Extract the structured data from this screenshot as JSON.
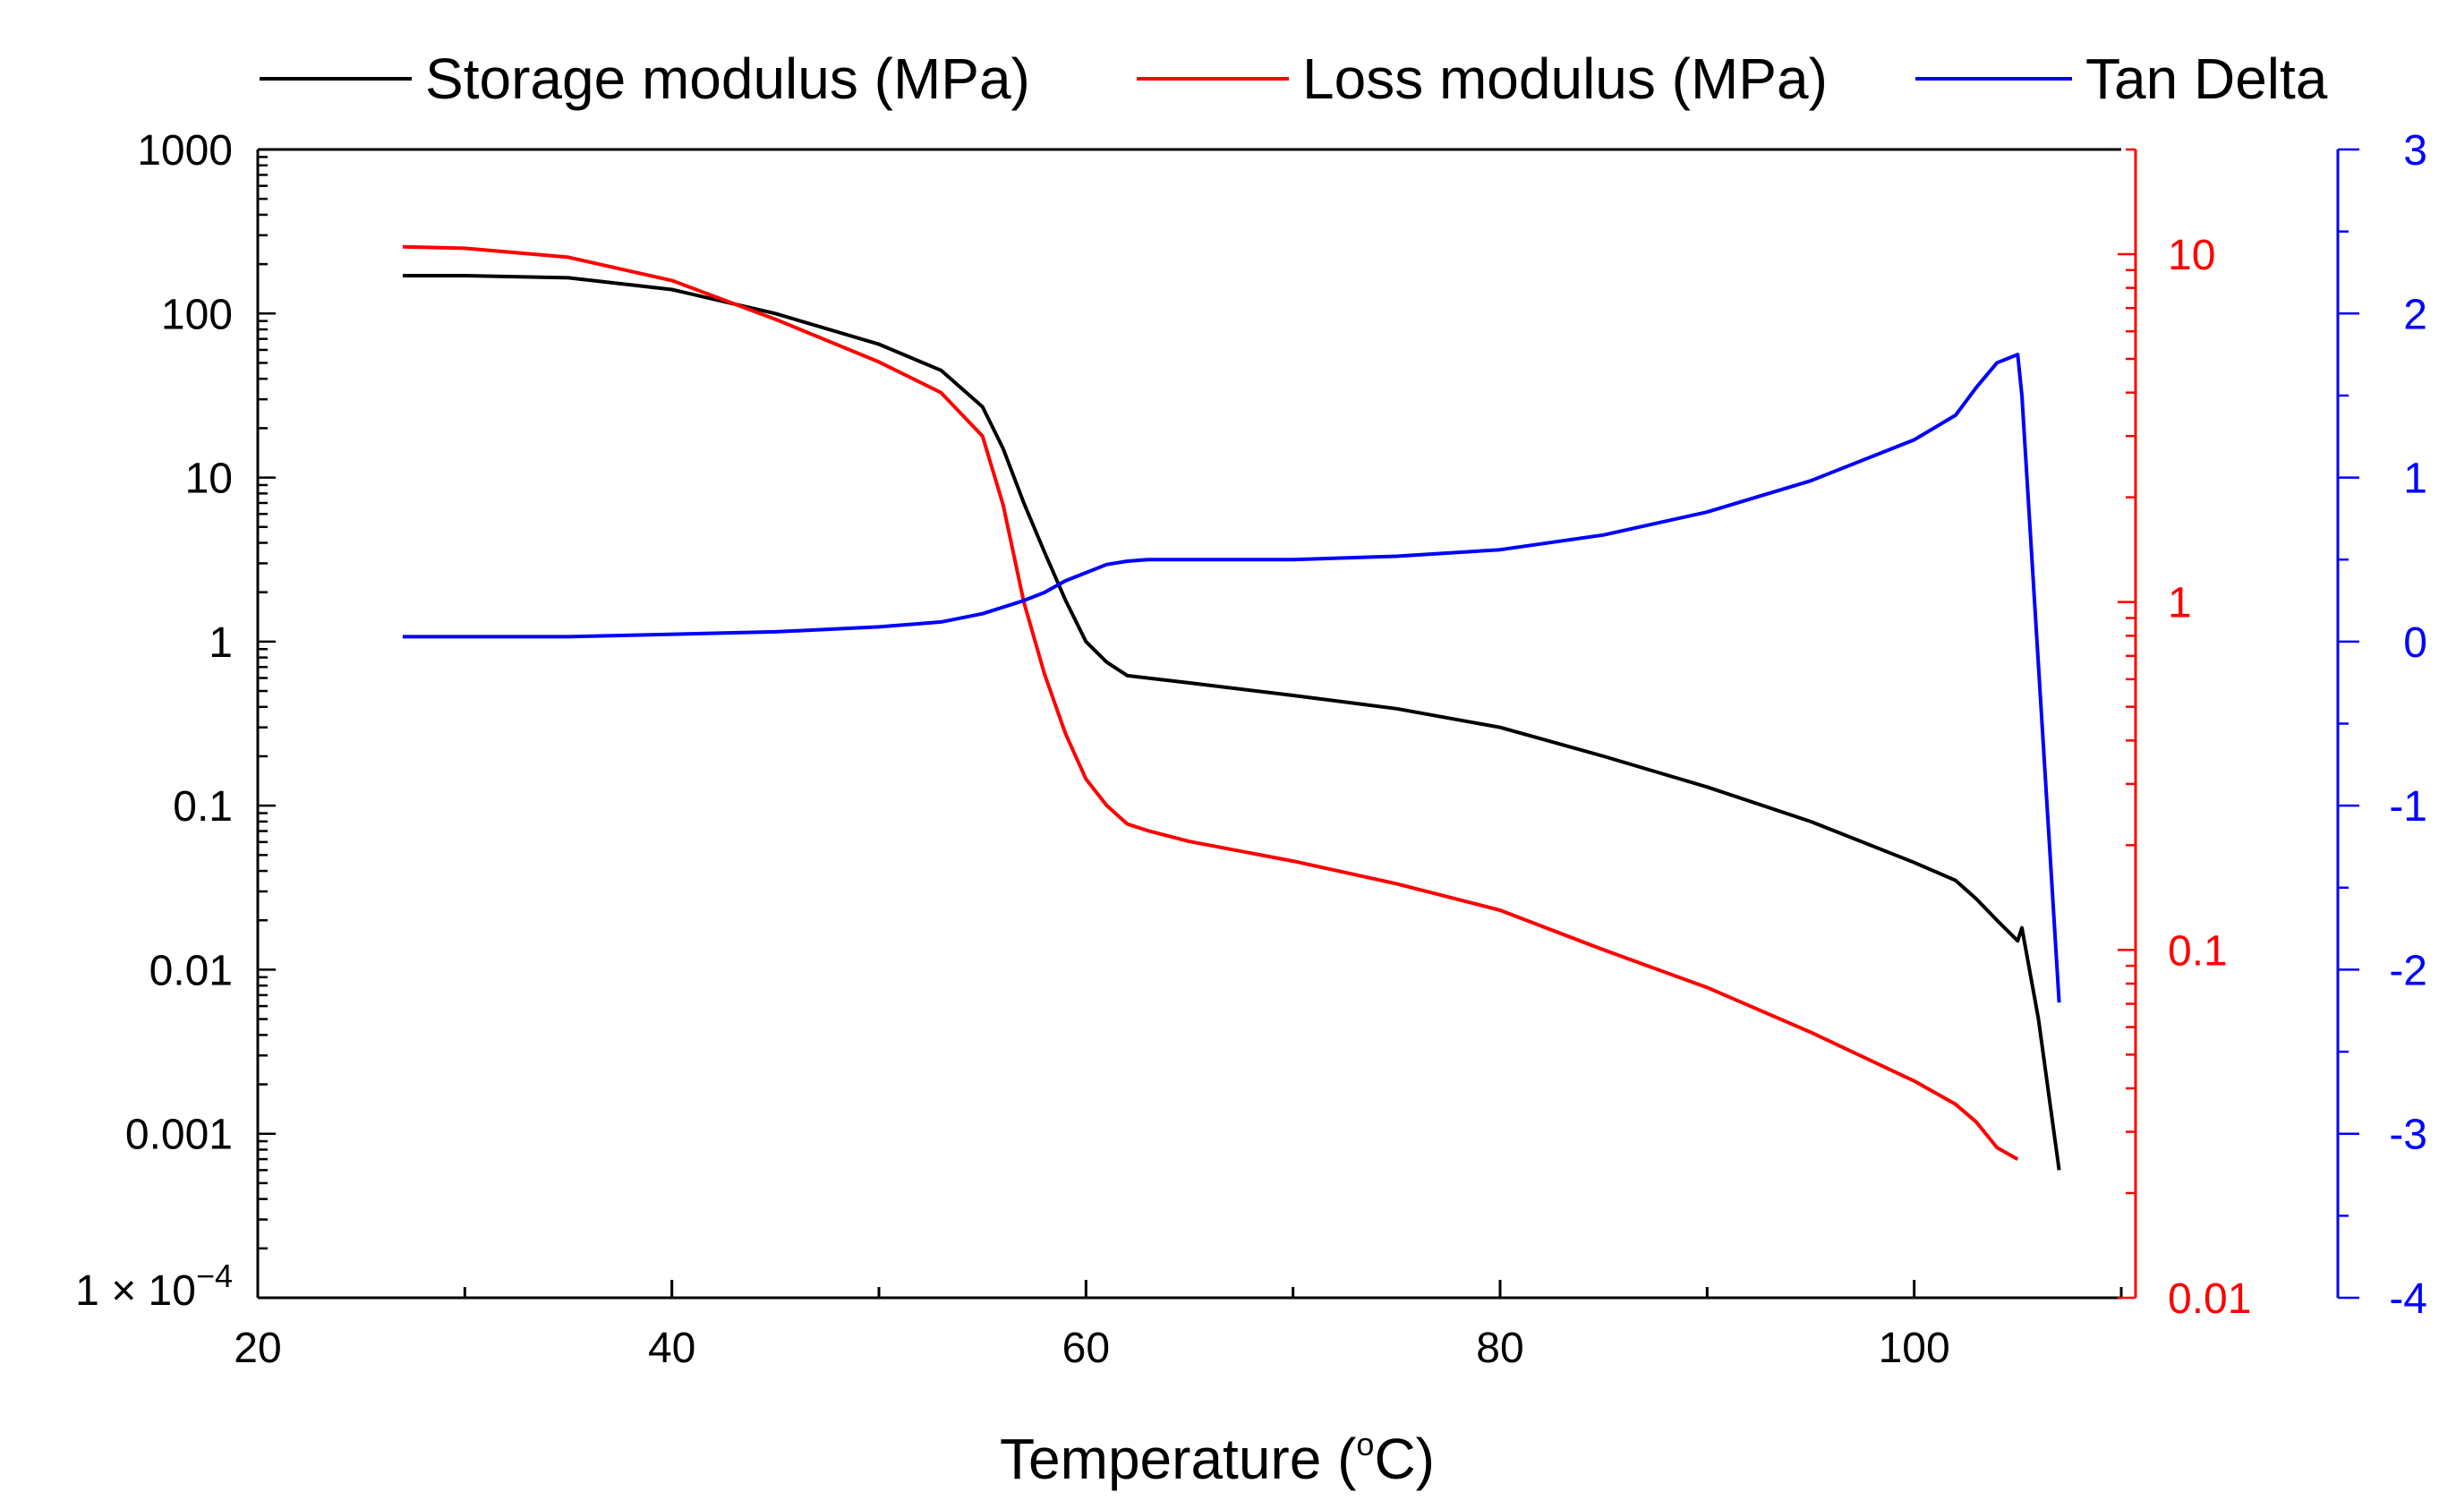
{
  "chart_data": {
    "type": "line",
    "title": "",
    "xlabel": "Temperature (",
    "xlabel_sup": "o",
    "xlabel_end": "C)",
    "xlim": [
      20,
      110
    ],
    "x_ticks": [
      20,
      40,
      60,
      80,
      100
    ],
    "x_tick_labels": [
      "20",
      "40",
      "60",
      "80",
      "100"
    ],
    "axes": {
      "left": {
        "scale": "log",
        "range": [
          0.0001,
          1000
        ],
        "color": "#000000",
        "tick_values": [
          1000,
          100,
          10,
          1,
          0.1,
          0.01,
          0.001
        ],
        "tick_labels": [
          "1000",
          "100",
          "10",
          "1",
          "0.1",
          "0.01",
          "0.001"
        ],
        "bottom_label_prefix": "1 × 10",
        "bottom_label_exp": "−4"
      },
      "right_red": {
        "scale": "log",
        "range": [
          0.01,
          20
        ],
        "color": "#ff0000",
        "tick_values": [
          10,
          1,
          0.1,
          0.01
        ],
        "tick_labels": [
          "10",
          "1",
          "0.1",
          "0.01"
        ]
      },
      "right_blue": {
        "scale": "linear",
        "range": [
          -4,
          3
        ],
        "color": "#0000ff",
        "tick_values": [
          3,
          2,
          1,
          0,
          -1,
          -2,
          -3,
          -4
        ],
        "tick_labels": [
          "3",
          "2",
          "1",
          "0",
          "-1",
          "-2",
          "-3",
          "-4"
        ]
      }
    },
    "series": [
      {
        "name": "Storage modulus (MPa)",
        "color": "#000000",
        "axis": "left",
        "x": [
          27,
          30,
          35,
          40,
          45,
          50,
          53,
          55,
          56,
          57,
          58,
          59,
          60,
          61,
          62,
          65,
          70,
          75,
          80,
          85,
          90,
          95,
          100,
          102,
          103,
          104,
          105,
          105.2,
          106,
          107
        ],
        "y": [
          170,
          170,
          165,
          140,
          100,
          65,
          45,
          27,
          15,
          7,
          3.5,
          1.8,
          1.0,
          0.75,
          0.62,
          0.56,
          0.47,
          0.39,
          0.3,
          0.2,
          0.13,
          0.08,
          0.045,
          0.035,
          0.027,
          0.02,
          0.015,
          0.018,
          0.005,
          0.0006
        ]
      },
      {
        "name": "Loss modulus (MPa)",
        "color": "#ff0000",
        "axis": "right_red",
        "x": [
          27,
          30,
          35,
          40,
          45,
          50,
          53,
          55,
          56,
          57,
          58,
          59,
          60,
          61,
          62,
          63,
          65,
          70,
          75,
          80,
          85,
          90,
          95,
          100,
          102,
          103,
          104,
          105
        ],
        "y": [
          10.5,
          10.4,
          9.8,
          8.4,
          6.5,
          4.9,
          4.0,
          3.0,
          1.9,
          1.0,
          0.62,
          0.42,
          0.31,
          0.26,
          0.23,
          0.22,
          0.205,
          0.18,
          0.155,
          0.13,
          0.1,
          0.078,
          0.058,
          0.042,
          0.036,
          0.032,
          0.027,
          0.025
        ]
      },
      {
        "name": "Tan Delta",
        "color": "#0000ff",
        "axis": "right_blue",
        "x": [
          27,
          35,
          45,
          50,
          53,
          55,
          57,
          58,
          59,
          60,
          61,
          62,
          63,
          65,
          70,
          75,
          80,
          85,
          90,
          95,
          100,
          102,
          103,
          104,
          105,
          105.2,
          107
        ],
        "y": [
          0.03,
          0.03,
          0.06,
          0.09,
          0.12,
          0.17,
          0.25,
          0.3,
          0.37,
          0.42,
          0.47,
          0.49,
          0.5,
          0.5,
          0.5,
          0.52,
          0.56,
          0.65,
          0.79,
          0.98,
          1.23,
          1.38,
          1.55,
          1.7,
          1.75,
          1.5,
          -2.2
        ]
      }
    ],
    "legend": {
      "placement": "top",
      "entries": [
        "Storage modulus (MPa)",
        "Loss modulus (MPa)",
        "Tan Delta"
      ]
    }
  }
}
